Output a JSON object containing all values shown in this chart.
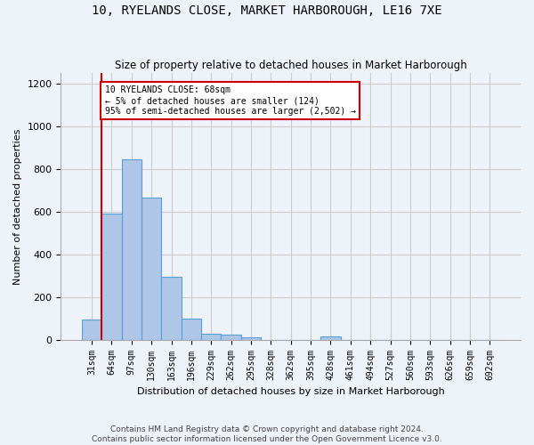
{
  "title": "10, RYELANDS CLOSE, MARKET HARBOROUGH, LE16 7XE",
  "subtitle": "Size of property relative to detached houses in Market Harborough",
  "xlabel": "Distribution of detached houses by size in Market Harborough",
  "ylabel": "Number of detached properties",
  "footer_line1": "Contains HM Land Registry data © Crown copyright and database right 2024.",
  "footer_line2": "Contains public sector information licensed under the Open Government Licence v3.0.",
  "bins": [
    "31sqm",
    "64sqm",
    "97sqm",
    "130sqm",
    "163sqm",
    "196sqm",
    "229sqm",
    "262sqm",
    "295sqm",
    "328sqm",
    "362sqm",
    "395sqm",
    "428sqm",
    "461sqm",
    "494sqm",
    "527sqm",
    "560sqm",
    "593sqm",
    "626sqm",
    "659sqm",
    "692sqm"
  ],
  "bar_values": [
    95,
    590,
    845,
    665,
    295,
    100,
    30,
    22,
    10,
    0,
    0,
    0,
    14,
    0,
    0,
    0,
    0,
    0,
    0,
    0,
    0
  ],
  "bar_color": "#aec6e8",
  "bar_edge_color": "#5a9fd4",
  "ylim": [
    0,
    1250
  ],
  "yticks": [
    0,
    200,
    400,
    600,
    800,
    1000,
    1200
  ],
  "red_line_bin_index": 1,
  "annotation_title": "10 RYELANDS CLOSE: 68sqm",
  "annotation_line1": "← 5% of detached houses are smaller (124)",
  "annotation_line2": "95% of semi-detached houses are larger (2,502) →",
  "red_line_color": "#cc0000",
  "annotation_box_color": "#ffffff",
  "annotation_box_edge_color": "#cc0000",
  "grid_color": "#cccccc",
  "background_color": "#eef2f9"
}
